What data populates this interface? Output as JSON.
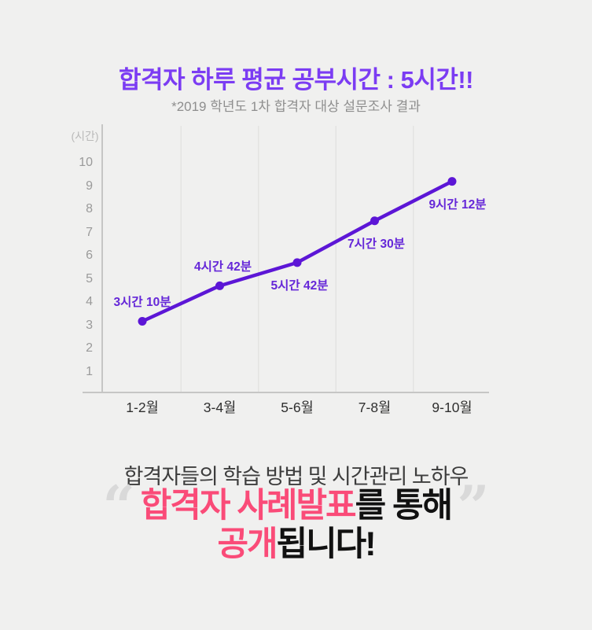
{
  "header": {
    "title": "합격자 하루 평균 공부시간 : 5시간!!",
    "subtitle": "*2019 학년도 1차 합격자 대상 설문조사 결과",
    "title_color": "#7b3cf3"
  },
  "chart_data": {
    "type": "line",
    "title": "합격자 하루 평균 공부시간 : 5시간!!",
    "unit_label": "(시간)",
    "xlabel": "",
    "ylabel": "시간",
    "categories": [
      "1-2월",
      "3-4월",
      "5-6월",
      "7-8월",
      "9-10월"
    ],
    "values": [
      3.17,
      4.7,
      5.7,
      7.5,
      9.2
    ],
    "point_labels": [
      "3시간 10분",
      "4시간 42분",
      "5시간 42분",
      "7시간 30분",
      "9시간 12분"
    ],
    "label_positions": [
      "above",
      "above",
      "below",
      "below",
      "below"
    ],
    "y_ticks": [
      1,
      2,
      3,
      4,
      5,
      6,
      7,
      8,
      9,
      10
    ],
    "ylim": [
      0,
      11.5
    ],
    "grid": "vertical-between-categories",
    "legend": "none",
    "line_color": "#5c16d6",
    "point_color": "#5c16d6",
    "label_color": "#6527d8",
    "axis_color": "#c6c6c5",
    "grid_color": "#e3e3e2"
  },
  "bottom": {
    "intro": "합격자들의 학습 방법 및 시간관리 노하우",
    "quote_open": "“",
    "quote_close": "”",
    "line1_highlight": "합격자 사례발표",
    "line1_rest": "를 통해",
    "line2_highlight": "공개",
    "line2_rest": "됩니다!",
    "highlight_color": "#fa4b78"
  },
  "background_color": "#f0f0ef"
}
